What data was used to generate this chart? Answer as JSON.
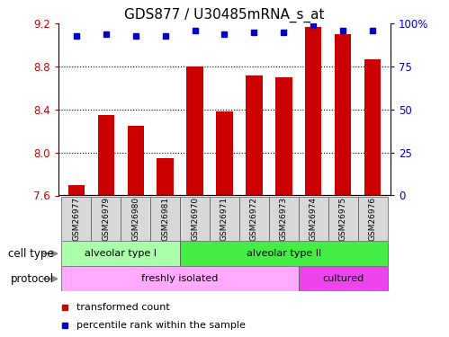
{
  "title": "GDS877 / U30485mRNA_s_at",
  "samples": [
    "GSM26977",
    "GSM26979",
    "GSM26980",
    "GSM26981",
    "GSM26970",
    "GSM26971",
    "GSM26972",
    "GSM26973",
    "GSM26974",
    "GSM26975",
    "GSM26976"
  ],
  "transformed_count": [
    7.7,
    8.35,
    8.25,
    7.95,
    8.8,
    8.38,
    8.72,
    8.7,
    9.17,
    9.1,
    8.87
  ],
  "percentile_rank": [
    93,
    94,
    93,
    93,
    96,
    94,
    95,
    95,
    99,
    96,
    96
  ],
  "bar_color": "#cc0000",
  "dot_color": "#0000cc",
  "ylim_left": [
    7.6,
    9.2
  ],
  "ylim_right": [
    0,
    100
  ],
  "yticks_left": [
    7.6,
    8.0,
    8.4,
    8.8,
    9.2
  ],
  "yticks_right": [
    0,
    25,
    50,
    75,
    100
  ],
  "ytick_labels_right": [
    "0",
    "25",
    "50",
    "75",
    "100%"
  ],
  "grid_values": [
    8.0,
    8.4,
    8.8
  ],
  "cell_type_groups": [
    {
      "label": "alveolar type I",
      "start": 0,
      "end": 3,
      "color": "#aaffaa"
    },
    {
      "label": "alveolar type II",
      "start": 4,
      "end": 10,
      "color": "#44ee44"
    }
  ],
  "protocol_groups": [
    {
      "label": "freshly isolated",
      "start": 0,
      "end": 7,
      "color": "#ffaaff"
    },
    {
      "label": "cultured",
      "start": 8,
      "end": 10,
      "color": "#ee44ee"
    }
  ],
  "row_label_cell_type": "cell type",
  "row_label_protocol": "protocol",
  "legend_red_label": "transformed count",
  "legend_blue_label": "percentile rank within the sample",
  "background_color": "#ffffff",
  "title_fontsize": 11,
  "tick_fontsize": 8.5,
  "bar_width": 0.55
}
